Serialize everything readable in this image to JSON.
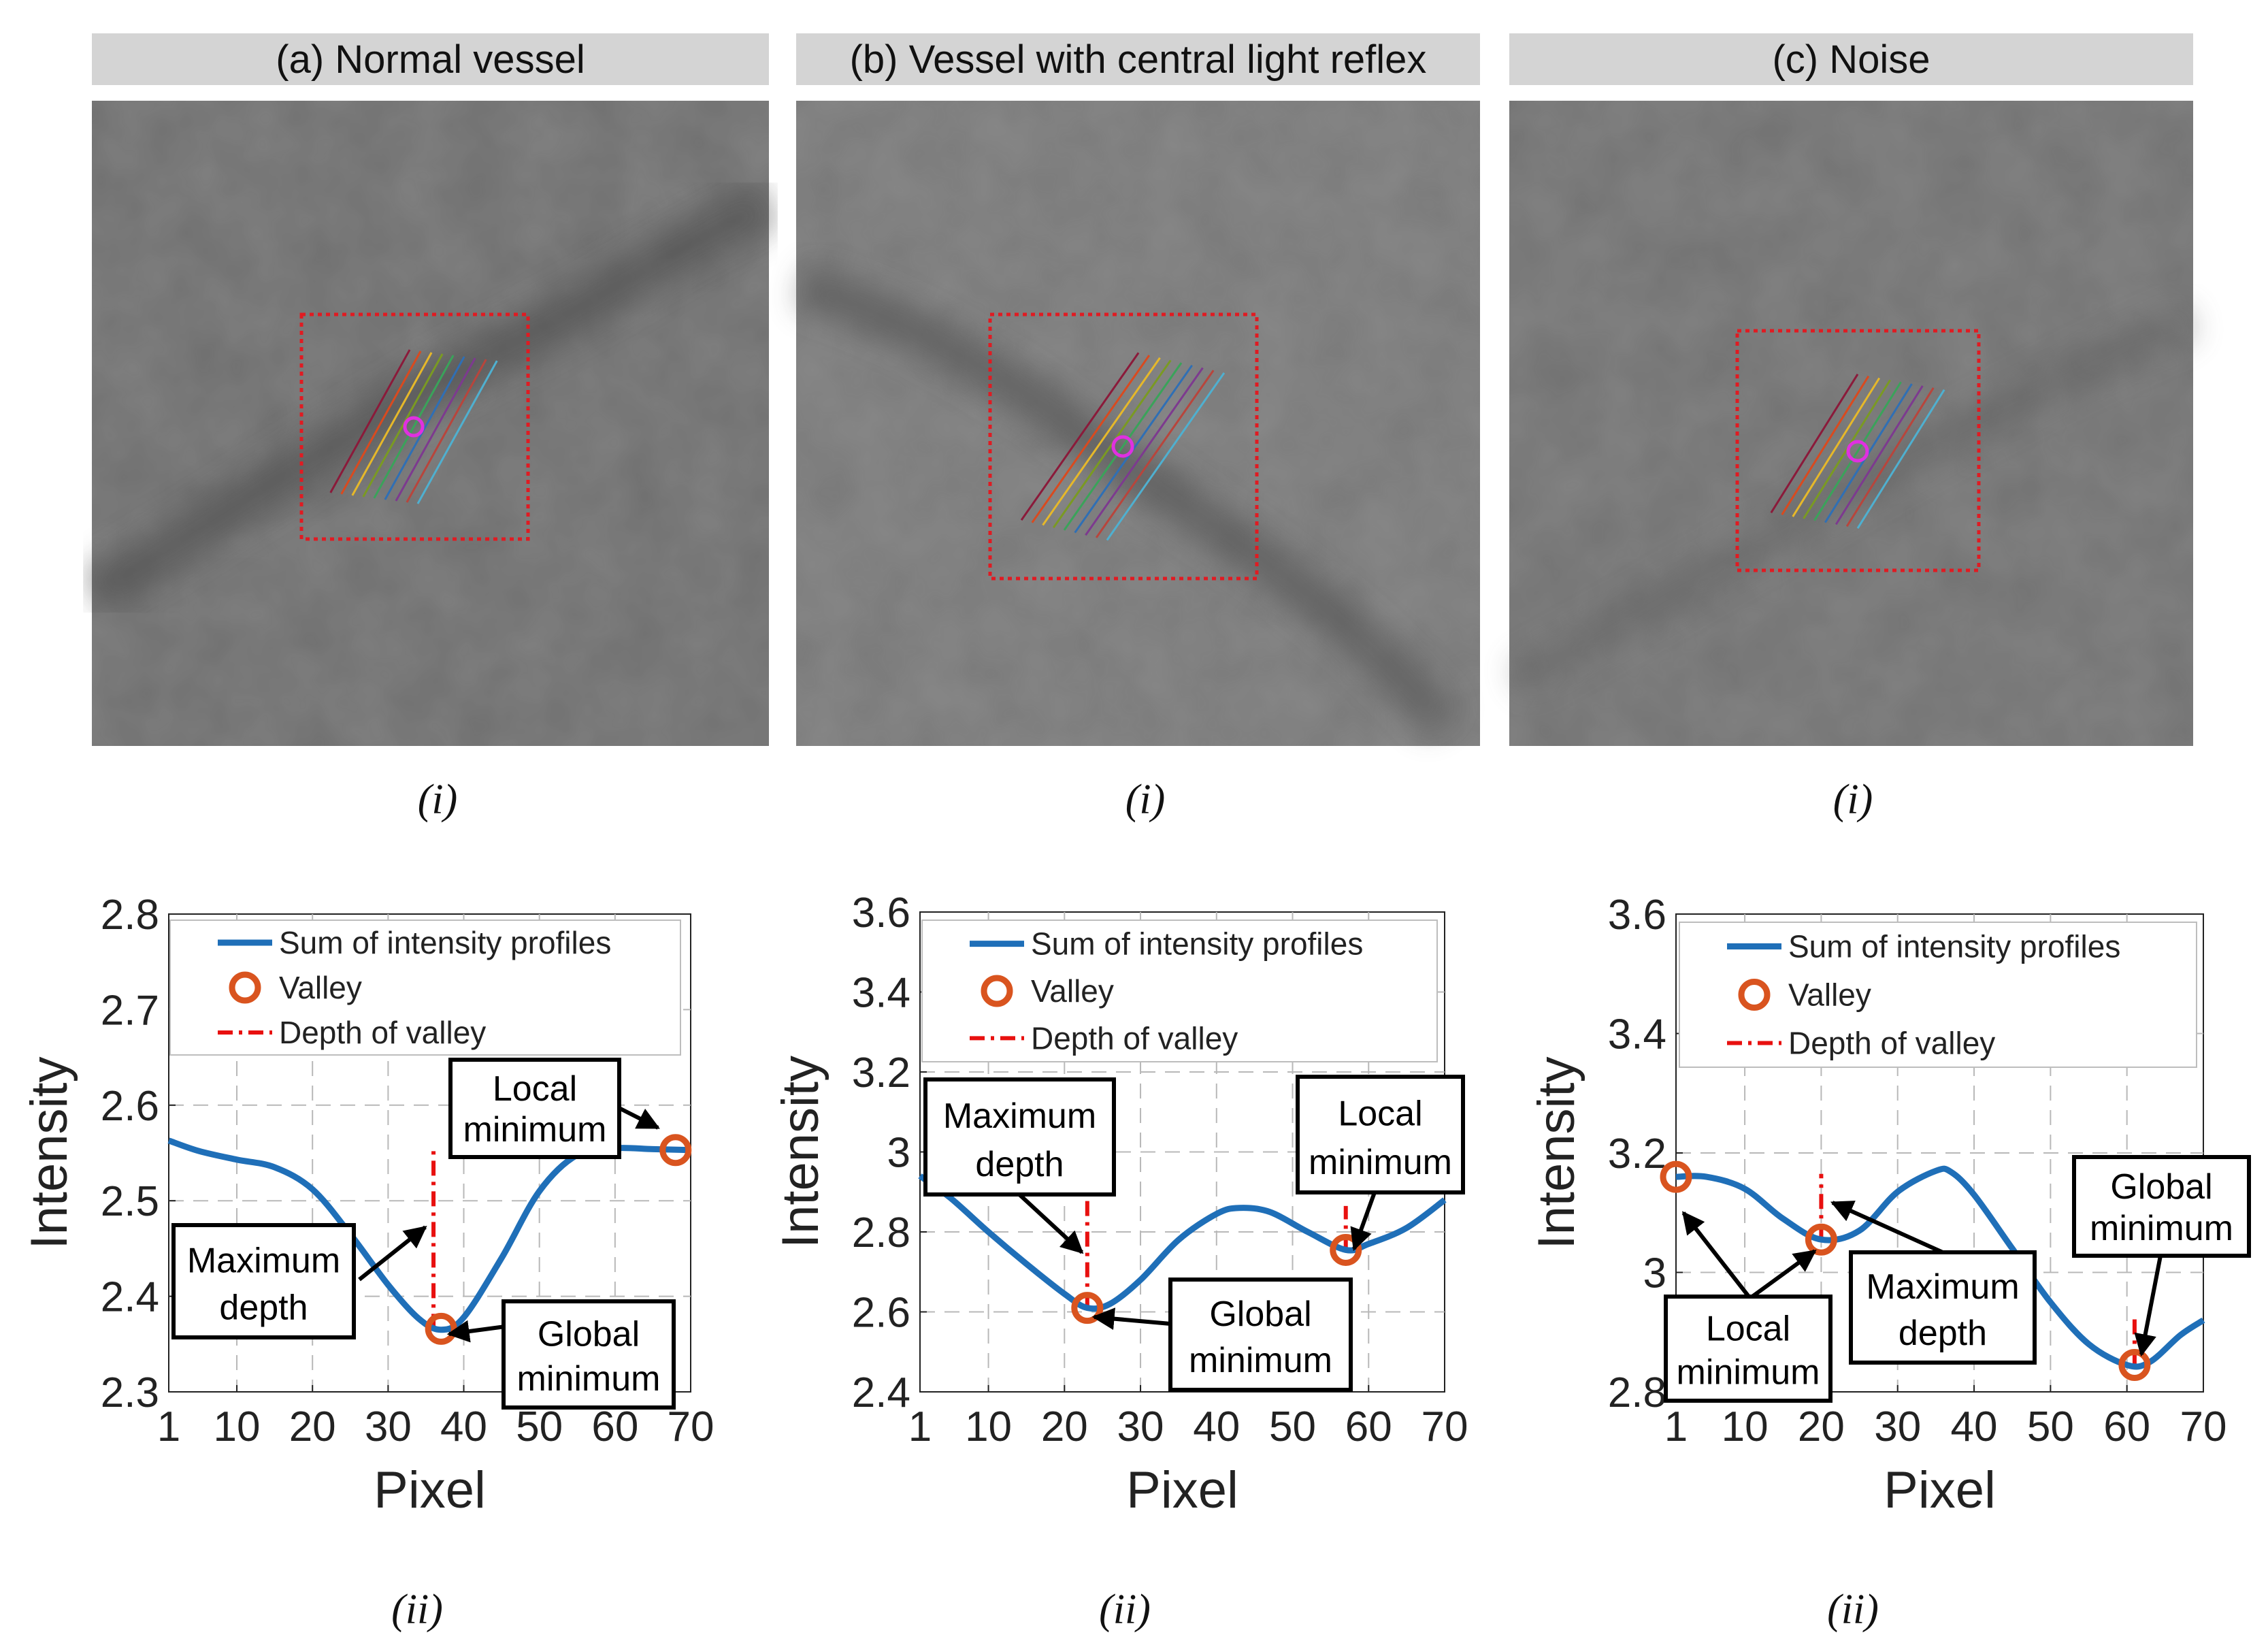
{
  "figure": {
    "panels": [
      {
        "title": "(a) Normal vessel",
        "row_i_caption": "(i)",
        "row_ii_caption": "(ii)"
      },
      {
        "title": "(b) Vessel with central light reflex",
        "row_i_caption": "(i)",
        "row_ii_caption": "(ii)"
      },
      {
        "title": "(c) Noise",
        "row_i_caption": "(i)",
        "row_ii_caption": "(ii)"
      }
    ],
    "colors": {
      "curve": "#1f6fb8",
      "valley": "#d9541f",
      "depth": "#e8100f",
      "roi": "#e01b22",
      "center": "#e030e0",
      "profile_lines": [
        "#8b1a3a",
        "#d94a1f",
        "#e6b82a",
        "#7a9a22",
        "#3aa35a",
        "#2f6fb5",
        "#7d3a8f",
        "#b8453c",
        "#4fb0d0"
      ]
    }
  },
  "chart_data": [
    {
      "type": "line",
      "xlabel": "Pixel",
      "ylabel": "Intensity",
      "xlim": [
        1,
        70
      ],
      "ylim": [
        2.3,
        2.8
      ],
      "xticks": [
        1,
        10,
        20,
        30,
        40,
        50,
        60,
        70
      ],
      "xtick_labels": [
        "1",
        "10",
        "20",
        "30",
        "40",
        "50",
        "60",
        "70"
      ],
      "yticks": [
        2.3,
        2.4,
        2.5,
        2.6,
        2.7,
        2.8
      ],
      "ytick_labels": [
        "2.3",
        "2.4",
        "2.5",
        "2.6",
        "2.7",
        "2.8"
      ],
      "grid": true,
      "legend": {
        "location": "top",
        "entries": [
          "Sum of intensity profiles",
          "Valley",
          "Depth of valley"
        ]
      },
      "series": [
        {
          "name": "Sum of intensity profiles",
          "x": [
            1,
            5,
            10,
            15,
            20,
            25,
            30,
            34,
            37,
            40,
            45,
            50,
            55,
            60,
            65,
            70
          ],
          "y": [
            2.563,
            2.552,
            2.543,
            2.535,
            2.512,
            2.465,
            2.412,
            2.377,
            2.365,
            2.378,
            2.44,
            2.51,
            2.548,
            2.555,
            2.554,
            2.553
          ]
        }
      ],
      "valleys": [
        {
          "x": 37,
          "y": 2.366
        },
        {
          "x": 68,
          "y": 2.553
        }
      ],
      "depth_lines": [
        {
          "x": 36,
          "y_from": 2.366,
          "y_to": 2.558
        }
      ],
      "annotations": [
        {
          "text": "Local minimum",
          "lines": [
            "Local",
            "minimum"
          ]
        },
        {
          "text": "Maximum depth",
          "lines": [
            "Maximum",
            "depth"
          ]
        },
        {
          "text": "Global minimum",
          "lines": [
            "Global",
            "minimum"
          ]
        }
      ]
    },
    {
      "type": "line",
      "xlabel": "Pixel",
      "ylabel": "Intensity",
      "xlim": [
        1,
        70
      ],
      "ylim": [
        2.4,
        3.6
      ],
      "xticks": [
        1,
        10,
        20,
        30,
        40,
        50,
        60,
        70
      ],
      "xtick_labels": [
        "1",
        "10",
        "20",
        "30",
        "40",
        "50",
        "60",
        "70"
      ],
      "yticks": [
        2.4,
        2.6,
        2.8,
        3.0,
        3.2,
        3.4,
        3.6
      ],
      "ytick_labels": [
        "2.4",
        "2.6",
        "2.8",
        "3",
        "3.2",
        "3.4",
        "3.6"
      ],
      "grid": true,
      "legend": {
        "location": "top",
        "entries": [
          "Sum of intensity profiles",
          "Valley",
          "Depth of valley"
        ]
      },
      "series": [
        {
          "name": "Sum of intensity profiles",
          "x": [
            1,
            5,
            10,
            15,
            20,
            23,
            26,
            30,
            35,
            40,
            43,
            47,
            52,
            57,
            60,
            65,
            70
          ],
          "y": [
            2.94,
            2.885,
            2.8,
            2.72,
            2.645,
            2.61,
            2.62,
            2.68,
            2.78,
            2.845,
            2.86,
            2.85,
            2.8,
            2.755,
            2.77,
            2.81,
            2.88
          ]
        }
      ],
      "valleys": [
        {
          "x": 23,
          "y": 2.61
        },
        {
          "x": 57,
          "y": 2.755
        }
      ],
      "depth_lines": [
        {
          "x": 23,
          "y_from": 2.61,
          "y_to": 2.93
        },
        {
          "x": 57,
          "y_from": 2.755,
          "y_to": 2.865
        }
      ],
      "annotations": [
        {
          "text": "Maximum depth",
          "lines": [
            "Maximum",
            "depth"
          ]
        },
        {
          "text": "Local minimum",
          "lines": [
            "Local",
            "minimum"
          ]
        },
        {
          "text": "Global minimum",
          "lines": [
            "Global",
            "minimum"
          ]
        }
      ]
    },
    {
      "type": "line",
      "xlabel": "Pixel",
      "ylabel": "Intensity",
      "xlim": [
        1,
        70
      ],
      "ylim": [
        2.8,
        3.6
      ],
      "xticks": [
        1,
        10,
        20,
        30,
        40,
        50,
        60,
        70
      ],
      "xtick_labels": [
        "1",
        "10",
        "20",
        "30",
        "40",
        "50",
        "60",
        "70"
      ],
      "yticks": [
        2.8,
        3.0,
        3.2,
        3.4,
        3.6
      ],
      "ytick_labels": [
        "2.8",
        "3",
        "3.2",
        "3.4",
        "3.6"
      ],
      "grid": true,
      "legend": {
        "location": "top",
        "entries": [
          "Sum of intensity profiles",
          "Valley",
          "Depth of valley"
        ]
      },
      "series": [
        {
          "name": "Sum of intensity profiles",
          "x": [
            1,
            5,
            10,
            15,
            20,
            25,
            30,
            35,
            37,
            40,
            45,
            50,
            55,
            60,
            63,
            67,
            70
          ],
          "y": [
            3.16,
            3.16,
            3.14,
            3.09,
            3.055,
            3.07,
            3.135,
            3.17,
            3.168,
            3.13,
            3.04,
            2.95,
            2.88,
            2.845,
            2.85,
            2.895,
            2.92
          ]
        }
      ],
      "valleys": [
        {
          "x": 1,
          "y": 3.16
        },
        {
          "x": 20,
          "y": 3.055
        },
        {
          "x": 61,
          "y": 2.845
        }
      ],
      "depth_lines": [
        {
          "x": 20,
          "y_from": 3.055,
          "y_to": 3.165
        },
        {
          "x": 61,
          "y_from": 2.845,
          "y_to": 2.93
        }
      ],
      "annotations": [
        {
          "text": "Local minimum",
          "lines": [
            "Local",
            "minimum"
          ]
        },
        {
          "text": "Maximum depth",
          "lines": [
            "Maximum",
            "depth"
          ]
        },
        {
          "text": "Global minimum",
          "lines": [
            "Global",
            "minimum"
          ]
        }
      ]
    }
  ]
}
